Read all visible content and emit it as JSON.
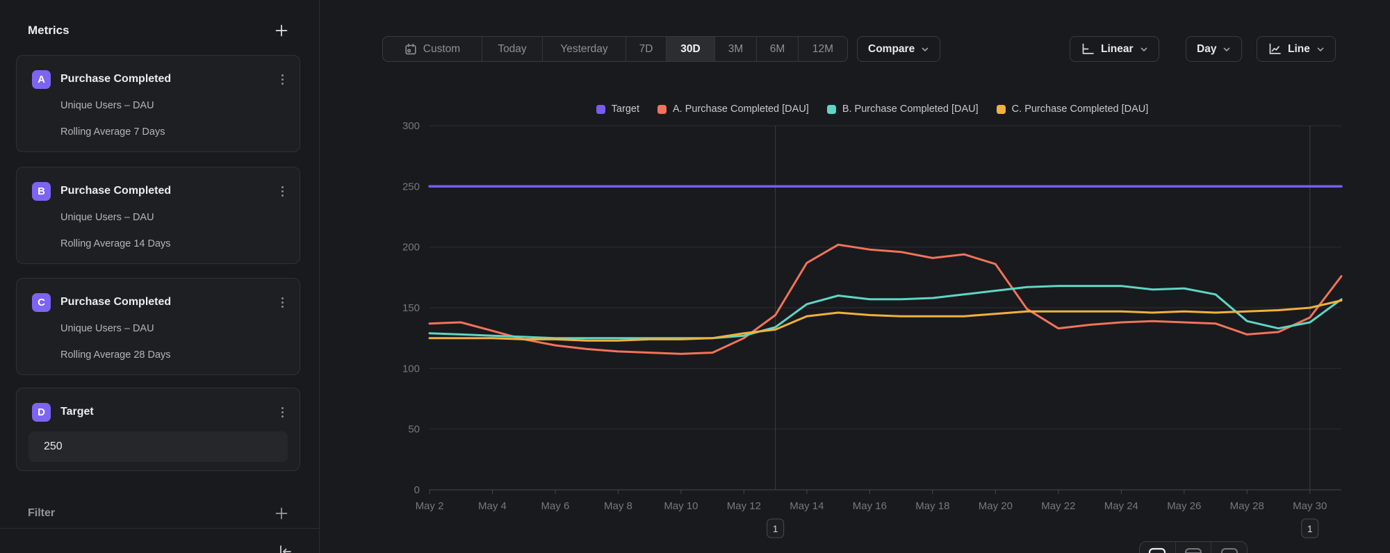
{
  "sidebar": {
    "title": "Metrics",
    "badge_color": "#7e64f2",
    "metrics": [
      {
        "badge": "A",
        "title": "Purchase Completed",
        "line1": "Unique Users – DAU",
        "line2": "Rolling Average 7 Days"
      },
      {
        "badge": "B",
        "title": "Purchase Completed",
        "line1": "Unique Users – DAU",
        "line2": "Rolling Average 14 Days"
      },
      {
        "badge": "C",
        "title": "Purchase Completed",
        "line1": "Unique Users – DAU",
        "line2": "Rolling Average 28 Days"
      },
      {
        "badge": "D",
        "title": "Target",
        "value": "250"
      }
    ],
    "filter_label": "Filter"
  },
  "toolbar": {
    "ranges": [
      "Custom",
      "Today",
      "Yesterday",
      "7D",
      "30D",
      "3M",
      "6M",
      "12M"
    ],
    "active_range": "30D",
    "compare_label": "Compare",
    "scale_label": "Linear",
    "interval_label": "Day",
    "chart_type_label": "Line"
  },
  "chart_data": {
    "type": "line",
    "x": [
      "May 2",
      "May 3",
      "May 4",
      "May 5",
      "May 6",
      "May 7",
      "May 8",
      "May 9",
      "May 10",
      "May 11",
      "May 12",
      "May 13",
      "May 14",
      "May 15",
      "May 16",
      "May 17",
      "May 18",
      "May 19",
      "May 20",
      "May 21",
      "May 22",
      "May 23",
      "May 24",
      "May 25",
      "May 26",
      "May 27",
      "May 28",
      "May 29",
      "May 30",
      "May 31"
    ],
    "ylim": [
      0,
      300
    ],
    "yticks": [
      0,
      50,
      100,
      150,
      200,
      250,
      300
    ],
    "grid": "horizontal",
    "legend_position": "top-center",
    "series": [
      {
        "name": "Target",
        "color": "#7a5cf0",
        "values": [
          250,
          250,
          250,
          250,
          250,
          250,
          250,
          250,
          250,
          250,
          250,
          250,
          250,
          250,
          250,
          250,
          250,
          250,
          250,
          250,
          250,
          250,
          250,
          250,
          250,
          250,
          250,
          250,
          250,
          250
        ]
      },
      {
        "name": "A. Purchase Completed [DAU]",
        "color": "#f2735a",
        "values": [
          137,
          138,
          131,
          124,
          119,
          116,
          114,
          113,
          112,
          113,
          125,
          144,
          187,
          202,
          198,
          196,
          191,
          194,
          186,
          149,
          133,
          136,
          138,
          139,
          138,
          137,
          128,
          130,
          142,
          176
        ]
      },
      {
        "name": "B. Purchase Completed [DAU]",
        "color": "#5fd6c5",
        "values": [
          129,
          128,
          127,
          126,
          125,
          125,
          125,
          125,
          125,
          125,
          127,
          134,
          153,
          160,
          157,
          157,
          158,
          161,
          164,
          167,
          168,
          168,
          168,
          165,
          166,
          161,
          139,
          133,
          138,
          157
        ]
      },
      {
        "name": "C. Purchase Completed [DAU]",
        "color": "#f1b13c",
        "values": [
          125,
          125,
          125,
          124,
          124,
          123,
          123,
          124,
          124,
          125,
          129,
          132,
          143,
          146,
          144,
          143,
          143,
          143,
          145,
          147,
          147,
          147,
          147,
          146,
          147,
          146,
          147,
          148,
          150,
          156
        ]
      }
    ],
    "annotations": [
      {
        "date": "May 13",
        "label": "1"
      },
      {
        "date": "May 30",
        "label": "1"
      }
    ]
  }
}
